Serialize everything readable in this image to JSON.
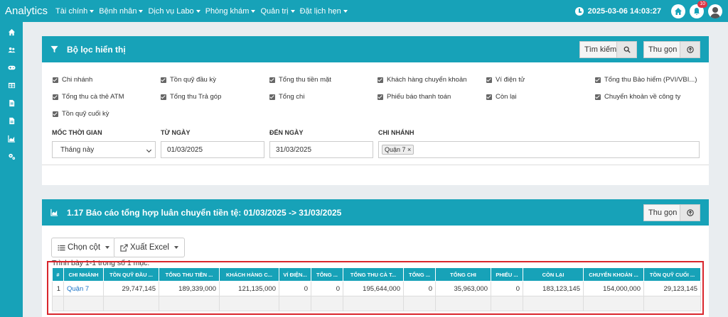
{
  "app": {
    "title": "Analytics"
  },
  "menu": [
    {
      "label": "Tài chính"
    },
    {
      "label": "Bệnh nhân"
    },
    {
      "label": "Dịch vụ Labo"
    },
    {
      "label": "Phòng khám"
    },
    {
      "label": "Quản trị"
    },
    {
      "label": "Đặt lịch hẹn"
    }
  ],
  "header": {
    "datetime": "2025-03-06 14:03:27",
    "notif_count": "10"
  },
  "sidebar": {
    "icons": [
      "home-icon",
      "users-icon",
      "gamepad-icon",
      "table-icon",
      "file-icon",
      "document-icon",
      "area-chart-icon",
      "cogs-icon"
    ]
  },
  "filter": {
    "title": "Bộ lọc hiển thị",
    "search_label": "Tìm kiếm",
    "collapse_label": "Thu gọn",
    "checkboxes": [
      "Chi nhánh",
      "Tồn quỹ đầu kỳ",
      "Tổng thu tiền mặt",
      "Khách hàng chuyển khoản",
      "Ví điện tử",
      "Tổng thu Bảo hiểm (PVI/VBI...)",
      "Tổng thu cà thẻ ATM",
      "Tổng thu Trả góp",
      "Tổng chi",
      "Phiếu báo thanh toán",
      "Còn lại",
      "Chuyển khoản về công ty",
      "Tồn quỹ cuối kỳ"
    ],
    "labels": {
      "time": "MỐC THỜI GIAN",
      "from": "TỪ NGÀY",
      "to": "ĐẾN NGÀY",
      "branch": "CHI NHÁNH"
    },
    "time_value": "Tháng này",
    "from_value": "01/03/2025",
    "to_value": "31/03/2025",
    "branch_tag": "Quận 7 ×"
  },
  "report": {
    "title": "1.17 Báo cáo tổng hợp luân chuyển tiền tệ: 01/03/2025 -> 31/03/2025",
    "collapse_label": "Thu gọn",
    "columns_button": "Chọn cột",
    "excel_button": "Xuất Excel",
    "summary": "Trình bày 1-1 trong số 1 mục.",
    "headers": [
      "#",
      "CHI NHÁNH",
      "TỒN QUỸ ĐẦU ...",
      "TỔNG THU TIỀN ...",
      "KHÁCH HÀNG C...",
      "VÍ ĐIỆN...",
      "TỔNG ...",
      "TỔNG THU CÀ T...",
      "TỔNG ...",
      "TỔNG CHI",
      "PHIẾU ...",
      "CÒN LẠI",
      "CHUYỂN KHOẢN ...",
      "TỒN QUỸ CUỐI ..."
    ],
    "rows": [
      [
        "1",
        "Quận 7",
        "29,747,145",
        "189,339,000",
        "121,135,000",
        "0",
        "0",
        "195,644,000",
        "0",
        "35,963,000",
        "0",
        "183,123,145",
        "154,000,000",
        "29,123,145"
      ]
    ]
  }
}
